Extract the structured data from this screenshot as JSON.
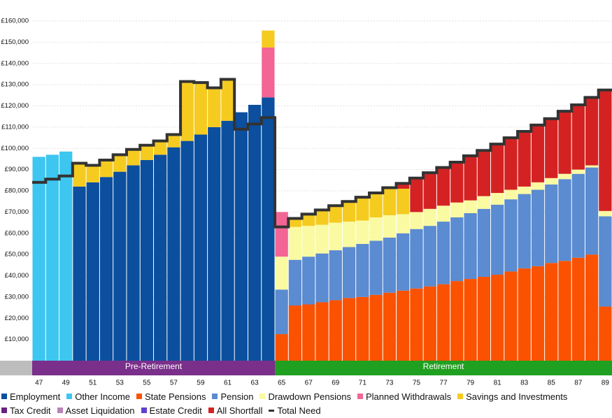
{
  "chart_data": {
    "type": "bar",
    "stacked": true,
    "categories": [
      47,
      null,
      49,
      null,
      51,
      null,
      53,
      null,
      55,
      null,
      57,
      null,
      59,
      null,
      61,
      null,
      63,
      null,
      65,
      null,
      67,
      null,
      69,
      null,
      71,
      null,
      73,
      null,
      75,
      null,
      77,
      null,
      79,
      null,
      81,
      null,
      83,
      null,
      85,
      null,
      87,
      null,
      89
    ],
    "phases": [
      {
        "label": "Pre-Retirement",
        "color": "#7a2f8a"
      },
      {
        "label": "Retirement",
        "color": "#20a020"
      }
    ],
    "ylim": [
      0,
      160000
    ],
    "yticks": [
      {
        "value": 10000,
        "label": "£10,000"
      },
      {
        "value": 20000,
        "label": "£20,000"
      },
      {
        "value": 30000,
        "label": "£30,000"
      },
      {
        "value": 40000,
        "label": "£40,000"
      },
      {
        "value": 50000,
        "label": "£50,000"
      },
      {
        "value": 60000,
        "label": "£60,000"
      },
      {
        "value": 70000,
        "label": "£70,000"
      },
      {
        "value": 80000,
        "label": "£80,000"
      },
      {
        "value": 90000,
        "label": "£90,000"
      },
      {
        "value": 100000,
        "label": "£100,000"
      },
      {
        "value": 110000,
        "label": "£110,000"
      },
      {
        "value": 120000,
        "label": "£120,000"
      },
      {
        "value": 130000,
        "label": "£130,000"
      },
      {
        "value": 140000,
        "label": "£140,000"
      },
      {
        "value": 150000,
        "label": "£150,000"
      },
      {
        "value": 160000,
        "label": "£160,000"
      }
    ],
    "grid": true,
    "series": [
      {
        "name": "Employment",
        "color": "#0b4f9e",
        "values": [
          null,
          null,
          null,
          82000,
          84000,
          86500,
          89000,
          92000,
          94500,
          97000,
          100500,
          103500,
          106500,
          110000,
          113000,
          117000,
          120500,
          124000,
          null,
          null,
          null,
          null,
          null,
          null,
          null,
          null,
          null,
          null,
          null,
          null,
          null,
          null,
          null,
          null,
          null,
          null,
          null,
          null,
          null,
          null,
          null,
          null,
          null
        ]
      },
      {
        "name": "Other Income",
        "color": "#3cc6f0",
        "values": [
          96000,
          97000,
          98500,
          null,
          null,
          null,
          null,
          null,
          null,
          null,
          null,
          null,
          null,
          null,
          null,
          null,
          null,
          null,
          null,
          null,
          null,
          null,
          null,
          null,
          null,
          null,
          null,
          null,
          null,
          null,
          null,
          null,
          null,
          null,
          null,
          null,
          null,
          null,
          null,
          null,
          null,
          null,
          null
        ]
      },
      {
        "name": "State Pensions",
        "color": "#fa5200",
        "values": [
          null,
          null,
          null,
          null,
          null,
          null,
          null,
          null,
          null,
          null,
          null,
          null,
          null,
          null,
          null,
          null,
          null,
          null,
          12500,
          26000,
          26500,
          27500,
          28500,
          29500,
          30000,
          31000,
          32000,
          33000,
          34000,
          35000,
          36000,
          37500,
          38500,
          39500,
          40500,
          42000,
          43500,
          44500,
          46000,
          47000,
          48500,
          50000,
          25500
        ]
      },
      {
        "name": "Pension",
        "color": "#5b8bd0",
        "values": [
          null,
          null,
          null,
          null,
          null,
          null,
          null,
          null,
          null,
          null,
          null,
          null,
          null,
          null,
          null,
          null,
          null,
          null,
          21000,
          21500,
          22500,
          23000,
          23500,
          24000,
          25000,
          25500,
          26000,
          27000,
          28000,
          28500,
          29500,
          30000,
          31000,
          32000,
          33000,
          34000,
          35000,
          36000,
          37000,
          38500,
          39500,
          41000,
          42500
        ]
      },
      {
        "name": "Drawdown Pensions",
        "color": "#fafaa2",
        "values": [
          null,
          null,
          null,
          null,
          null,
          null,
          null,
          null,
          null,
          null,
          null,
          null,
          null,
          null,
          null,
          null,
          null,
          null,
          15500,
          15500,
          14500,
          13500,
          13000,
          12000,
          11000,
          11000,
          10500,
          9000,
          8000,
          8000,
          7500,
          7000,
          6000,
          6000,
          5500,
          4500,
          3500,
          3500,
          3000,
          2500,
          2000,
          1000,
          2500
        ]
      },
      {
        "name": "Planned Withdrawals",
        "color": "#f26595",
        "values": [
          null,
          null,
          null,
          null,
          null,
          null,
          null,
          null,
          null,
          null,
          null,
          null,
          null,
          null,
          null,
          null,
          null,
          23500,
          21000,
          null,
          null,
          null,
          null,
          null,
          null,
          null,
          null,
          null,
          null,
          null,
          null,
          null,
          null,
          null,
          null,
          null,
          null,
          null,
          null,
          null,
          null,
          null,
          null
        ]
      },
      {
        "name": "Savings and Investments",
        "color": "#f5cb20",
        "values": [
          null,
          null,
          null,
          11000,
          8500,
          8000,
          8000,
          7500,
          7000,
          6500,
          6000,
          28000,
          24500,
          18500,
          19500,
          null,
          null,
          8000,
          null,
          4000,
          5500,
          7000,
          8000,
          9500,
          11000,
          11500,
          13000,
          12000,
          null,
          null,
          null,
          null,
          null,
          null,
          null,
          null,
          null,
          null,
          null,
          null,
          null,
          null,
          null
        ]
      },
      {
        "name": "Tax Credit",
        "color": "#6a2080",
        "values": [
          null,
          null,
          null,
          null,
          null,
          null,
          null,
          null,
          null,
          null,
          null,
          null,
          null,
          null,
          null,
          null,
          null,
          null,
          null,
          null,
          null,
          null,
          null,
          null,
          null,
          null,
          null,
          null,
          null,
          null,
          null,
          null,
          null,
          null,
          null,
          null,
          null,
          null,
          null,
          null,
          null,
          null,
          null
        ]
      },
      {
        "name": "Asset Liquidation",
        "color": "#b884b8",
        "values": [
          null,
          null,
          null,
          null,
          null,
          null,
          null,
          null,
          null,
          null,
          null,
          null,
          null,
          null,
          null,
          null,
          null,
          null,
          null,
          null,
          null,
          null,
          null,
          null,
          null,
          null,
          null,
          null,
          null,
          null,
          null,
          null,
          null,
          null,
          null,
          null,
          null,
          null,
          null,
          null,
          null,
          null,
          null
        ]
      },
      {
        "name": "Estate Credit",
        "color": "#6040d0",
        "values": [
          null,
          null,
          null,
          null,
          null,
          null,
          null,
          null,
          null,
          null,
          null,
          null,
          null,
          null,
          null,
          null,
          null,
          null,
          null,
          null,
          null,
          null,
          null,
          null,
          null,
          null,
          null,
          null,
          null,
          null,
          null,
          null,
          null,
          null,
          null,
          null,
          null,
          null,
          null,
          null,
          null,
          null,
          null
        ]
      },
      {
        "name": "All Shortfall",
        "color": "#d42222",
        "values": [
          null,
          null,
          null,
          null,
          null,
          null,
          null,
          null,
          null,
          null,
          null,
          null,
          null,
          null,
          null,
          null,
          null,
          null,
          null,
          null,
          null,
          null,
          null,
          null,
          null,
          null,
          null,
          2500,
          16000,
          17000,
          18000,
          19000,
          21000,
          21500,
          23000,
          24500,
          26000,
          27000,
          28000,
          29500,
          30500,
          32000,
          57000
        ]
      },
      {
        "name": "Total Need",
        "type": "line",
        "color": "#333333",
        "values": [
          84000,
          85500,
          87000,
          93000,
          92000,
          94500,
          97000,
          99500,
          101500,
          103500,
          106500,
          131500,
          131000,
          128500,
          132500,
          109000,
          111500,
          114500,
          63000,
          67000,
          69000,
          71000,
          73000,
          75000,
          77000,
          79000,
          81500,
          83500,
          86000,
          88500,
          91000,
          93500,
          96500,
          99000,
          102000,
          105000,
          108000,
          111000,
          114000,
          117500,
          120500,
          124000,
          127500
        ]
      }
    ]
  }
}
